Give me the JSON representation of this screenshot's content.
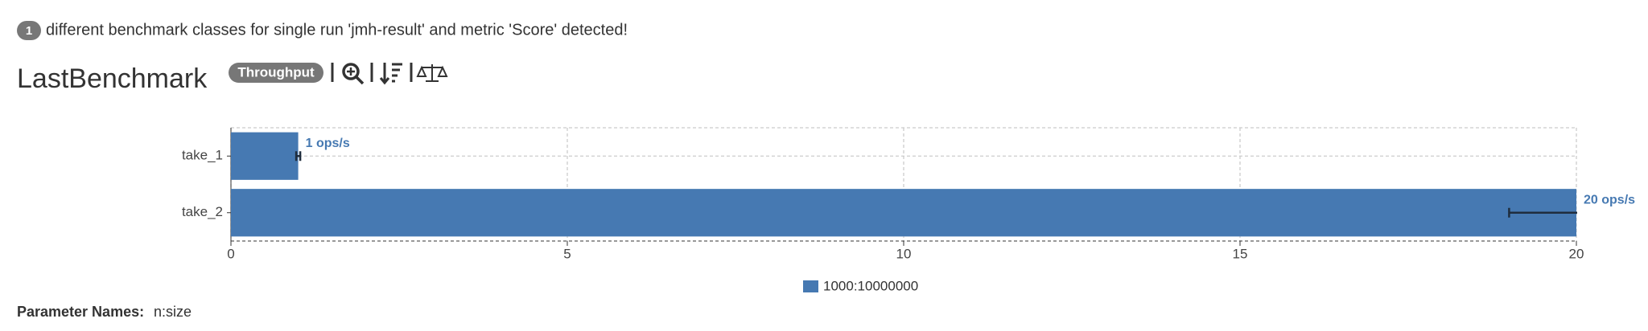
{
  "header": {
    "badge": "1",
    "message": "different benchmark classes for single run 'jmh-result' and metric 'Score' detected!",
    "title": "LastBenchmark",
    "mode": "Throughput"
  },
  "chart_data": {
    "type": "bar",
    "orientation": "horizontal",
    "categories": [
      "take_1",
      "take_2"
    ],
    "series": [
      {
        "name": "1000:10000000",
        "color": "#4679b2",
        "values": [
          1,
          20
        ],
        "errors": [
          0.03,
          1
        ],
        "value_labels": [
          "1 ops/s",
          "20 ops/s"
        ]
      }
    ],
    "xlim": [
      0,
      20
    ],
    "xticks": [
      0,
      5,
      10,
      15,
      20
    ],
    "grid": true
  },
  "footer": {
    "label": "Parameter Names:",
    "value": "n:size"
  }
}
